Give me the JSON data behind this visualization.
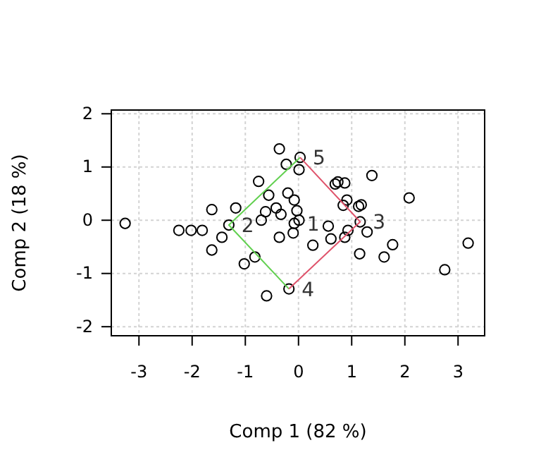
{
  "chart_data": {
    "type": "scatter",
    "xlabel": "Comp 1 (82 %)",
    "ylabel": "Comp 2 (18 %)",
    "xlim": [
      -3.52,
      3.5
    ],
    "ylim": [
      -2.17,
      2.07
    ],
    "xticks": [
      -3,
      -2,
      -1,
      0,
      1,
      2,
      3
    ],
    "yticks": [
      -2,
      -1,
      0,
      1,
      2
    ],
    "grid": true,
    "marker": "circle",
    "series": [
      {
        "color": "#000000",
        "x": [
          -3.26,
          -2.25,
          -2.02,
          -1.81,
          -1.63,
          -1.44,
          -1.63,
          -1.18,
          -1.31,
          -1.02,
          -0.82,
          -0.75,
          -0.56,
          -0.62,
          -0.7,
          -0.6,
          -0.36,
          -0.36,
          -0.42,
          -0.33,
          -0.23,
          -0.2,
          -0.08,
          -0.03,
          -0.1,
          -0.08,
          0.01,
          0.01,
          -0.18,
          0.03,
          0.56,
          0.27,
          0.61,
          0.69,
          0.74,
          0.87,
          1.38,
          0.91,
          0.84,
          1.13,
          1.18,
          0.93,
          0.87,
          1.29,
          1.15,
          1.61,
          1.77,
          2.08,
          2.75,
          3.19,
          1.16
        ],
        "values": [
          -0.06,
          -0.19,
          -0.19,
          -0.19,
          0.2,
          -0.32,
          -0.56,
          0.23,
          -0.09,
          -0.82,
          -0.69,
          0.73,
          0.47,
          0.16,
          0.0,
          -1.42,
          1.34,
          -0.32,
          0.23,
          0.11,
          1.05,
          0.51,
          0.38,
          0.18,
          -0.24,
          -0.06,
          0.0,
          0.95,
          -1.29,
          1.18,
          -0.11,
          -0.47,
          -0.35,
          0.68,
          0.72,
          0.7,
          0.84,
          0.38,
          0.28,
          0.26,
          0.29,
          -0.19,
          -0.32,
          -0.22,
          -0.63,
          -0.69,
          -0.46,
          0.42,
          -0.93,
          -0.43,
          -0.03
        ]
      },
      {
        "type": "line",
        "color": "#61d04f",
        "marker": "none",
        "x": [
          -0.18,
          -1.31,
          0.03
        ],
        "values": [
          -1.29,
          -0.09,
          1.18
        ]
      },
      {
        "type": "line",
        "color": "#df536b",
        "marker": "none",
        "x": [
          0.03,
          1.16,
          -0.18
        ],
        "values": [
          1.18,
          -0.03,
          -1.29
        ]
      }
    ],
    "annotations": [
      {
        "text": "1",
        "x": -0.08,
        "y": -0.06
      },
      {
        "text": "2",
        "x": -1.31,
        "y": -0.09
      },
      {
        "text": "3",
        "x": 1.16,
        "y": -0.03
      },
      {
        "text": "4",
        "x": -0.18,
        "y": -1.29
      },
      {
        "text": "5",
        "x": 0.03,
        "y": 1.18
      }
    ]
  }
}
